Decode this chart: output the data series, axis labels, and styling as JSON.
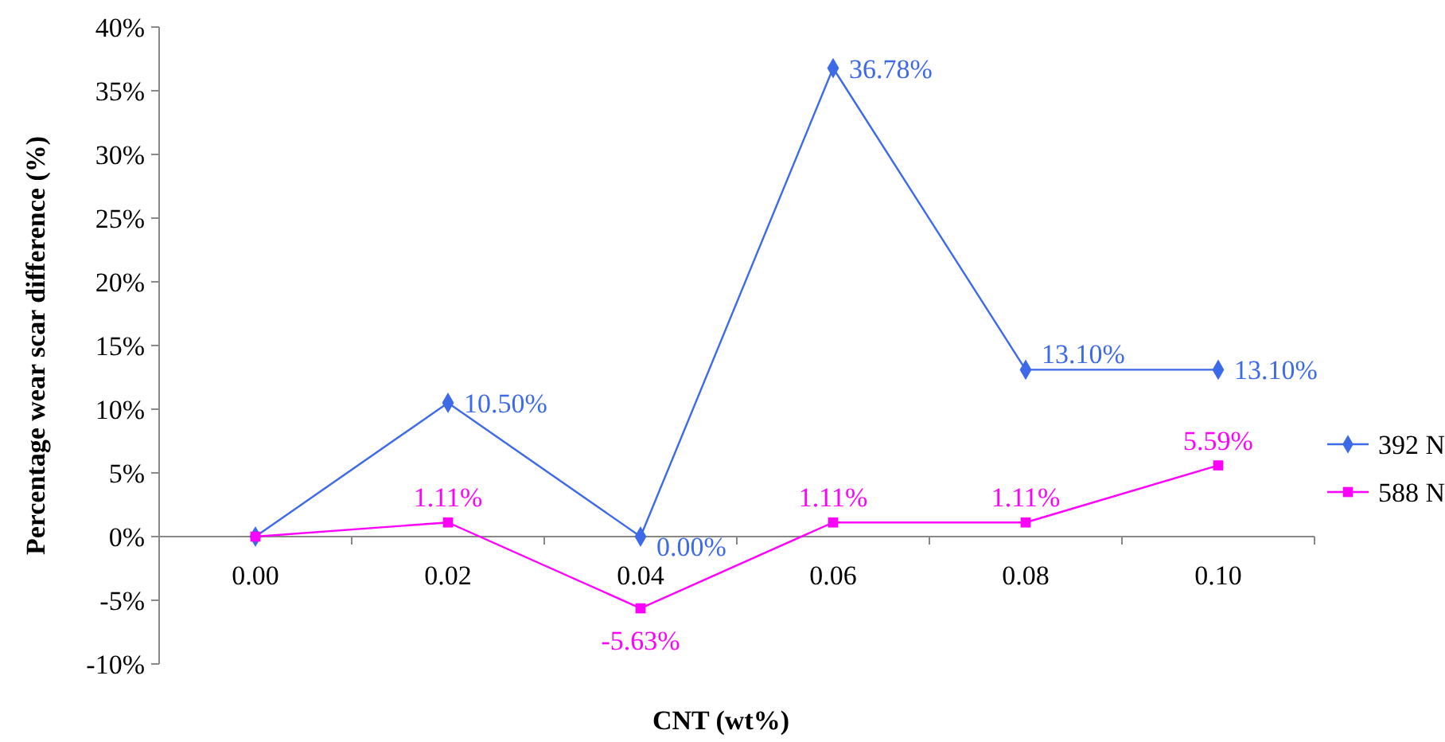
{
  "chart_data": {
    "type": "line",
    "xlabel": "CNT (wt%)",
    "ylabel": "Percentage wear scar difference (%)",
    "categories": [
      "0.00",
      "0.02",
      "0.04",
      "0.06",
      "0.08",
      "0.10"
    ],
    "series": [
      {
        "name": "392 N",
        "color": "#3d6ae8",
        "marker": "diamond",
        "values": [
          0,
          10.5,
          0,
          36.78,
          13.1,
          13.1
        ],
        "value_labels": [
          null,
          "10.50%",
          "0.00%",
          "36.78%",
          "13.10%",
          "13.10%"
        ]
      },
      {
        "name": "588 N",
        "color": "#ff00ff",
        "marker": "square",
        "values": [
          0,
          1.11,
          -5.63,
          1.11,
          1.11,
          5.59
        ],
        "value_labels": [
          null,
          "1.11%",
          "-5.63%",
          "1.11%",
          "1.11%",
          "5.59%"
        ]
      }
    ],
    "ylim": [
      -10,
      40
    ],
    "yticks": [
      {
        "value": -10,
        "label": "-10%"
      },
      {
        "value": -5,
        "label": "-5%"
      },
      {
        "value": 0,
        "label": "0%"
      },
      {
        "value": 5,
        "label": "5%"
      },
      {
        "value": 10,
        "label": "10%"
      },
      {
        "value": 15,
        "label": "15%"
      },
      {
        "value": 20,
        "label": "20%"
      },
      {
        "value": 25,
        "label": "25%"
      },
      {
        "value": 30,
        "label": "30%"
      },
      {
        "value": 35,
        "label": "35%"
      },
      {
        "value": 40,
        "label": "40%"
      }
    ],
    "grid": false,
    "legend": "right",
    "line_style": "solid"
  }
}
